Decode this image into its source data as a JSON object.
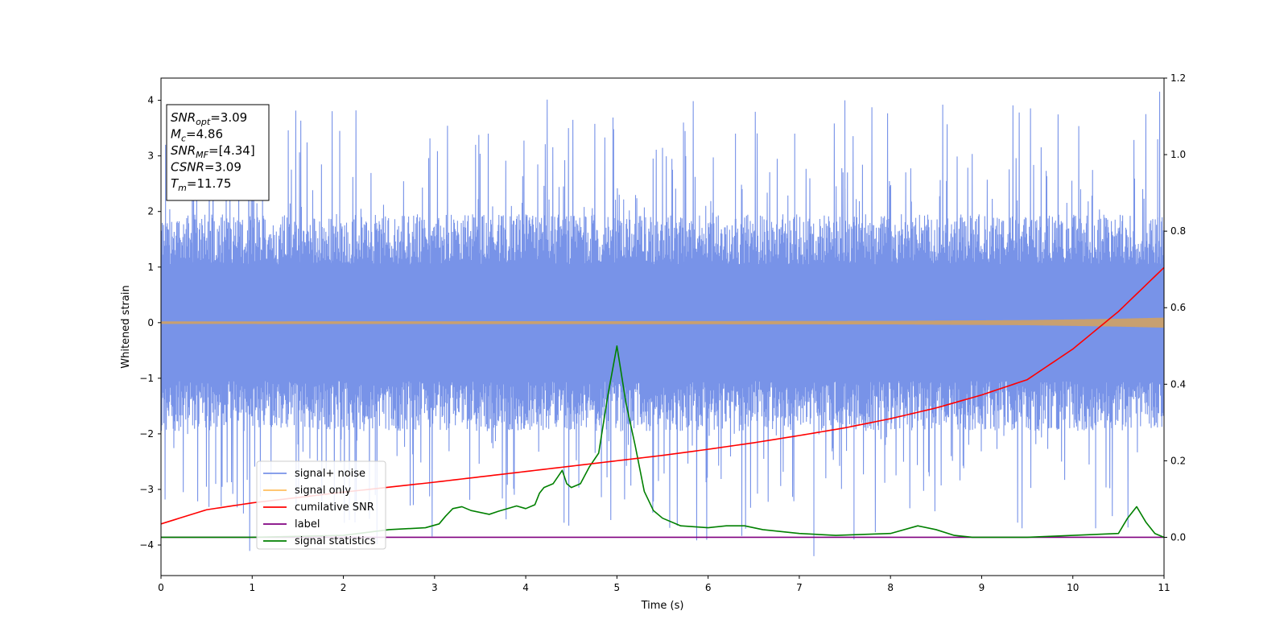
{
  "chart_data": {
    "type": "line",
    "xlabel": "Time (s)",
    "ylabel_left": "Whitened strain",
    "xlim": [
      0,
      11
    ],
    "ylim_left": [
      -4.55,
      4.4
    ],
    "ylim_right": [
      -0.1,
      1.2
    ],
    "xticks": [
      0,
      1,
      2,
      3,
      4,
      5,
      6,
      7,
      8,
      9,
      10,
      11
    ],
    "yticks_left": [
      -4,
      -3,
      -2,
      -1,
      0,
      1,
      2,
      3,
      4
    ],
    "yticks_right": [
      0.0,
      0.2,
      0.4,
      0.6,
      0.8,
      1.0,
      1.2
    ],
    "legend_position": "lower-left",
    "annotation_lines": [
      {
        "base": "SNR",
        "sub": "opt",
        "rest": "=3.09"
      },
      {
        "base": "M",
        "sub": "c",
        "rest": "=4.86"
      },
      {
        "base": "SNR",
        "sub": "MF",
        "rest": "=[4.34]"
      },
      {
        "base": "CSNR",
        "sub": "",
        "rest": "=3.09"
      },
      {
        "base": "T",
        "sub": "m",
        "rest": "=11.75"
      }
    ],
    "series": [
      {
        "name": "signal+ noise",
        "axis": "left",
        "color": "#7893e8",
        "render": "noise-band",
        "amplitude_core": 1.5,
        "peaks_x": [
          0.05,
          0.6,
          0.66,
          0.99,
          1.96,
          2.35,
          3.45,
          3.73,
          4.42,
          5.73,
          6.3,
          6.95,
          7.16,
          7.6,
          7.5,
          10.25,
          10.93
        ],
        "peaks_y": [
          3.2,
          -2.9,
          -3.3,
          3.15,
          3.45,
          -3.1,
          3.2,
          0.5,
          -3.6,
          3.6,
          3.4,
          3.4,
          -4.2,
          -3.9,
          4.0,
          -3.7,
          3.3
        ]
      },
      {
        "name": "signal only",
        "axis": "left",
        "color": "#ffbf5f",
        "x": [
          0,
          5,
          8,
          9.5,
          10.5,
          11
        ],
        "y_amplitude": [
          0.02,
          0.025,
          0.03,
          0.045,
          0.07,
          0.09
        ]
      },
      {
        "name": "cumilative SNR",
        "axis": "right",
        "color": "#ff0000",
        "x": [
          0,
          0.5,
          1,
          1.5,
          2,
          2.5,
          3,
          3.5,
          4,
          4.5,
          5,
          5.5,
          6,
          6.5,
          7,
          7.5,
          8,
          8.5,
          9,
          9.5,
          10,
          10.5,
          11
        ],
        "y": [
          0.035,
          0.072,
          0.09,
          0.104,
          0.118,
          0.131,
          0.144,
          0.158,
          0.172,
          0.186,
          0.2,
          0.214,
          0.23,
          0.247,
          0.266,
          0.286,
          0.31,
          0.338,
          0.372,
          0.412,
          0.492,
          0.59,
          0.705
        ]
      },
      {
        "name": "label",
        "axis": "right",
        "color": "#800080",
        "x": [
          0,
          11
        ],
        "y": [
          0.0,
          0.0
        ]
      },
      {
        "name": "signal statistics",
        "axis": "right",
        "color": "#008000",
        "x": [
          0,
          1.0,
          2.0,
          2.5,
          2.9,
          3.05,
          3.12,
          3.2,
          3.3,
          3.4,
          3.6,
          3.7,
          3.9,
          4.0,
          4.1,
          4.15,
          4.2,
          4.3,
          4.4,
          4.45,
          4.5,
          4.6,
          4.7,
          4.8,
          4.9,
          5.0,
          5.1,
          5.2,
          5.3,
          5.4,
          5.5,
          5.7,
          6.0,
          6.2,
          6.4,
          6.6,
          6.8,
          7.0,
          7.4,
          8.0,
          8.3,
          8.5,
          8.7,
          8.9,
          9.5,
          10.0,
          10.5,
          10.6,
          10.7,
          10.8,
          10.9,
          11.0
        ],
        "y": [
          0.0,
          0.0,
          0.005,
          0.02,
          0.025,
          0.035,
          0.055,
          0.075,
          0.08,
          0.07,
          0.06,
          0.068,
          0.082,
          0.075,
          0.085,
          0.115,
          0.13,
          0.14,
          0.175,
          0.14,
          0.13,
          0.14,
          0.185,
          0.22,
          0.37,
          0.5,
          0.35,
          0.24,
          0.12,
          0.07,
          0.05,
          0.03,
          0.025,
          0.03,
          0.03,
          0.02,
          0.015,
          0.01,
          0.005,
          0.01,
          0.03,
          0.02,
          0.005,
          0.0,
          0.0,
          0.005,
          0.01,
          0.05,
          0.08,
          0.04,
          0.01,
          0.0
        ]
      }
    ]
  }
}
